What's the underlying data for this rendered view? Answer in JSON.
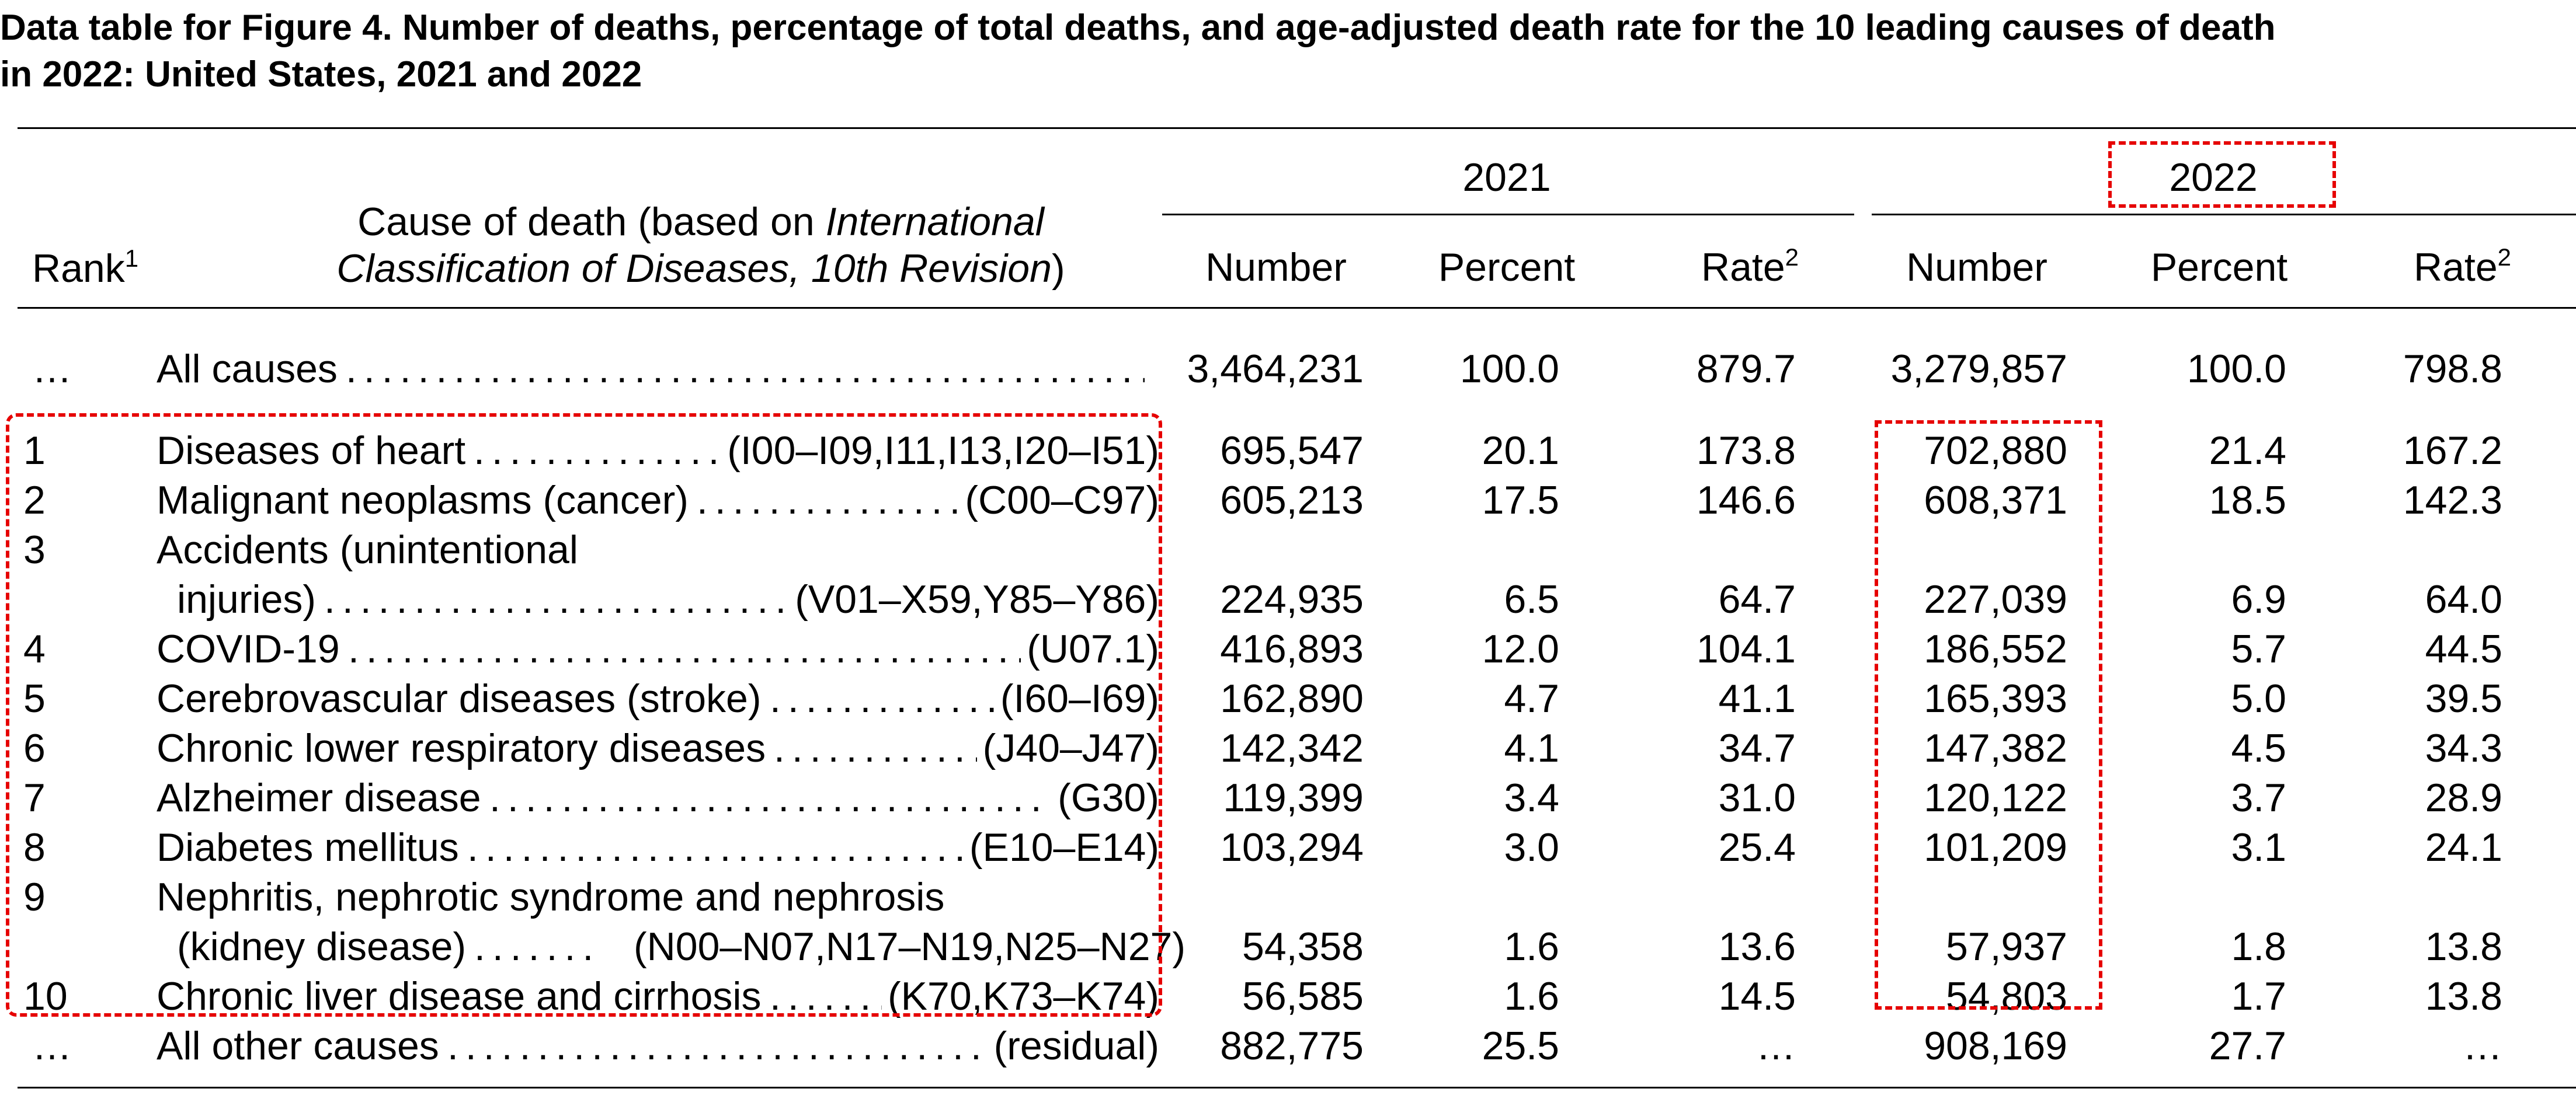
{
  "title": {
    "line1": "Data table for Figure 4. Number of deaths, percentage of total deaths, and age-adjusted death rate for the 10 leading causes of death",
    "line2": "in 2022: United States, 2021 and 2022"
  },
  "header": {
    "rank": "Rank",
    "rank_sup": "1",
    "cause_line1_a": "Cause of death (based on ",
    "cause_line1_b": "International",
    "cause_line2_a": "Classification of Diseases, 10th Revision",
    "cause_line2_b": ")",
    "year_2021": "2021",
    "year_2022": "2022",
    "number": "Number",
    "percent": "Percent",
    "rate": "Rate",
    "rate_sup": "2"
  },
  "rows": [
    {
      "rank": "…",
      "cause": "All causes",
      "code": "",
      "n21": "3,464,231",
      "p21": "100.0",
      "r21": "879.7",
      "n22": "3,279,857",
      "p22": "100.0",
      "r22": "798.8"
    },
    {
      "rank": "1",
      "cause": "Diseases of heart",
      "code": "(I00–I09,I11,I13,I20–I51)",
      "n21": "695,547",
      "p21": "20.1",
      "r21": "173.8",
      "n22": "702,880",
      "p22": "21.4",
      "r22": "167.2"
    },
    {
      "rank": "2",
      "cause": "Malignant neoplasms (cancer)",
      "code": "(C00–C97)",
      "n21": "605,213",
      "p21": "17.5",
      "r21": "146.6",
      "n22": "608,371",
      "p22": "18.5",
      "r22": "142.3"
    },
    {
      "rank": "3",
      "cause": "Accidents (unintentional",
      "cause2": "injuries)",
      "code": "(V01–X59,Y85–Y86)",
      "n21": "224,935",
      "p21": "6.5",
      "r21": "64.7",
      "n22": "227,039",
      "p22": "6.9",
      "r22": "64.0"
    },
    {
      "rank": "4",
      "cause": "COVID-19",
      "code": "(U07.1)",
      "n21": "416,893",
      "p21": "12.0",
      "r21": "104.1",
      "n22": "186,552",
      "p22": "5.7",
      "r22": "44.5"
    },
    {
      "rank": "5",
      "cause": "Cerebrovascular diseases (stroke)",
      "code": "(I60–I69)",
      "n21": "162,890",
      "p21": "4.7",
      "r21": "41.1",
      "n22": "165,393",
      "p22": "5.0",
      "r22": "39.5"
    },
    {
      "rank": "6",
      "cause": "Chronic lower respiratory diseases",
      "code": "(J40–J47)",
      "n21": "142,342",
      "p21": "4.1",
      "r21": "34.7",
      "n22": "147,382",
      "p22": "4.5",
      "r22": "34.3"
    },
    {
      "rank": "7",
      "cause": "Alzheimer disease",
      "code": "(G30)",
      "n21": "119,399",
      "p21": "3.4",
      "r21": "31.0",
      "n22": "120,122",
      "p22": "3.7",
      "r22": "28.9"
    },
    {
      "rank": "8",
      "cause": "Diabetes mellitus",
      "code": "(E10–E14)",
      "n21": "103,294",
      "p21": "3.0",
      "r21": "25.4",
      "n22": "101,209",
      "p22": "3.1",
      "r22": "24.1"
    },
    {
      "rank": "9",
      "cause": "Nephritis, nephrotic syndrome and nephrosis",
      "cause2": "(kidney disease)",
      "code": "(N00–N07,N17–N19,N25–N27)",
      "n21": "54,358",
      "p21": "1.6",
      "r21": "13.6",
      "n22": "57,937",
      "p22": "1.8",
      "r22": "13.8"
    },
    {
      "rank": "10",
      "cause": "Chronic liver disease and cirrhosis",
      "code": "(K70,K73–K74)",
      "n21": "56,585",
      "p21": "1.6",
      "r21": "14.5",
      "n22": "54,803",
      "p22": "1.7",
      "r22": "13.8"
    },
    {
      "rank": "…",
      "cause": "All other causes",
      "code": "(residual)",
      "n21": "882,775",
      "p21": "25.5",
      "r21": "…",
      "n22": "908,169",
      "p22": "27.7",
      "r22": "…"
    }
  ],
  "colors": {
    "annotation": "#e60000"
  }
}
